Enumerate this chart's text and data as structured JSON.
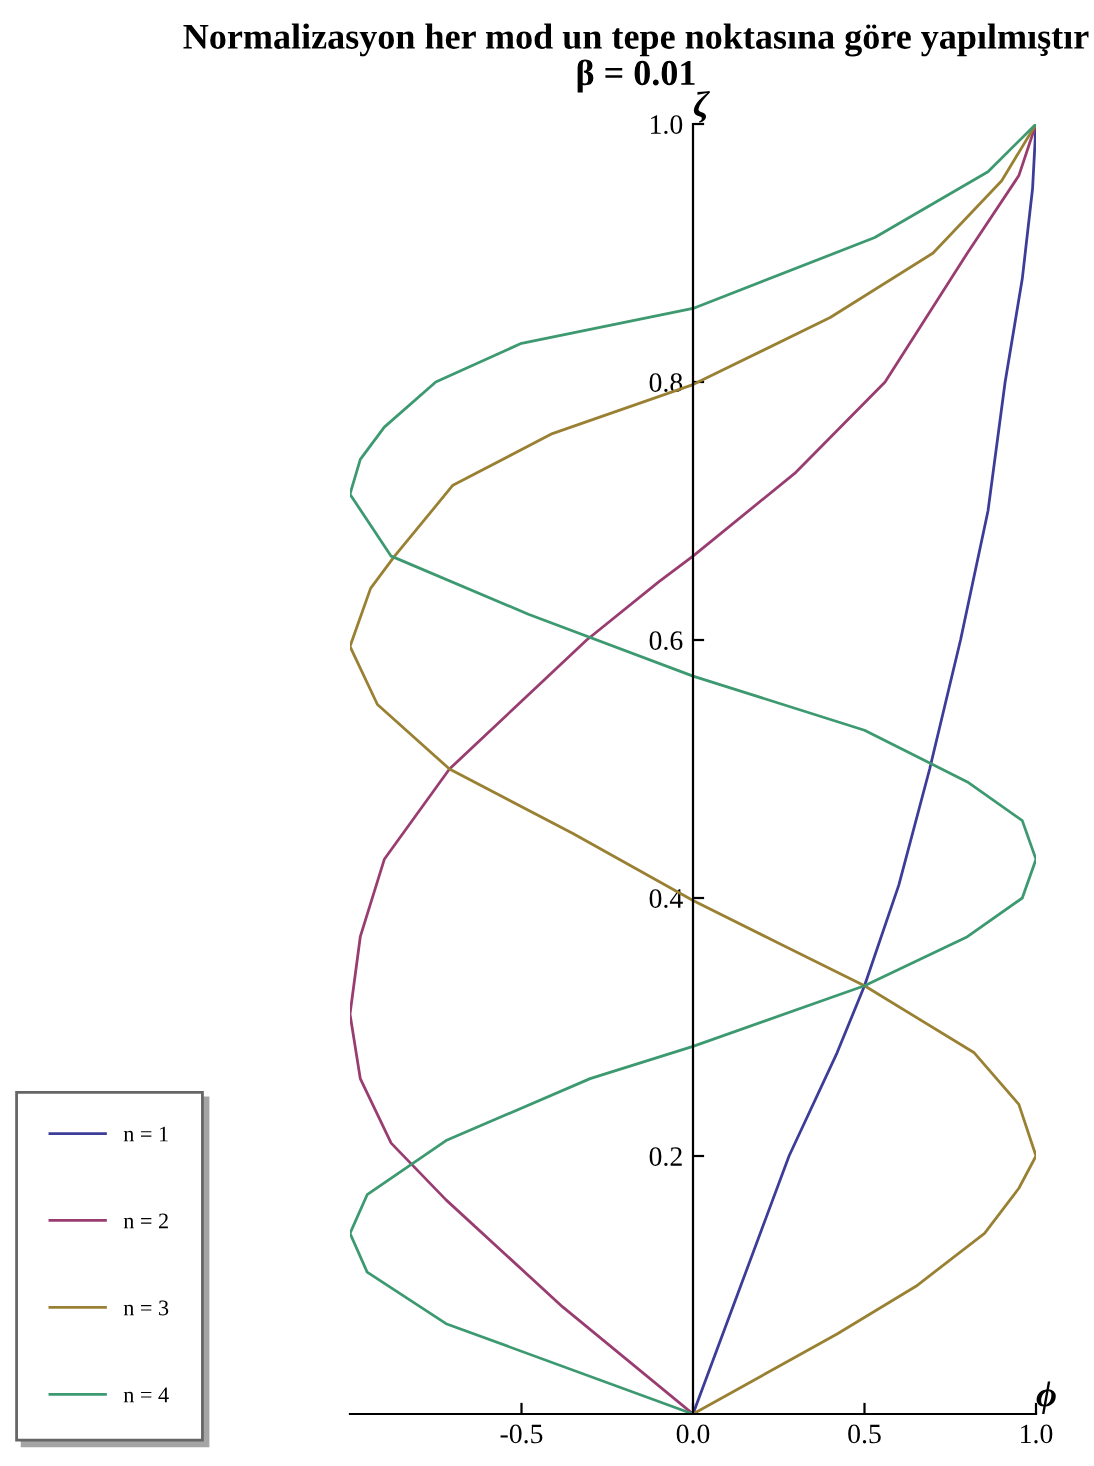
{
  "chart_data": {
    "type": "line",
    "title": "Normalizasyon her mod un tepe noktasına göre yapılmıştır",
    "subtitle": "β = 0.01",
    "xlabel": "ϕ",
    "ylabel": "ζ",
    "xlim": [
      -1.0,
      1.0
    ],
    "ylim": [
      0,
      1.0
    ],
    "xticks": [
      -0.5,
      {
        "value": 0,
        "label": "0.0"
      },
      0.5,
      {
        "value": 1,
        "label": "1.0"
      }
    ],
    "yticks": [
      0.2,
      0.4,
      0.6,
      0.8,
      {
        "value": 1,
        "label": "1.0"
      }
    ],
    "grid": false,
    "legend": "bottom left",
    "series": [
      {
        "name": "n = 1",
        "color": "#3d3d99",
        "x": [
          0,
          0.14,
          0.28,
          0.42,
          0.5,
          0.6,
          0.69,
          0.78,
          0.86,
          0.91,
          0.96,
          0.99,
          1.0
        ],
        "values": [
          0,
          0.1,
          0.2,
          0.28,
          0.332,
          0.41,
          0.5,
          0.6,
          0.7,
          0.8,
          0.88,
          0.95,
          1.0
        ]
      },
      {
        "name": "n = 2",
        "color": "#993d71",
        "x": [
          0,
          -0.38,
          -0.72,
          -0.88,
          -0.97,
          -1.0,
          -0.97,
          -0.9,
          -0.71,
          -0.51,
          -0.31,
          -0.1,
          0,
          0.3,
          0.56,
          0.8,
          0.95,
          1.0
        ],
        "values": [
          0,
          0.083,
          0.166,
          0.21,
          0.26,
          0.31,
          0.37,
          0.43,
          0.5,
          0.55,
          0.6,
          0.645,
          0.665,
          0.73,
          0.8,
          0.9,
          0.96,
          1.0
        ]
      },
      {
        "name": "n = 3",
        "color": "#998033",
        "x": [
          0,
          0.42,
          0.65,
          0.85,
          0.95,
          1.0,
          0.95,
          0.82,
          0.5,
          0.25,
          0,
          -0.35,
          -0.71,
          -0.92,
          -1.0,
          -0.94,
          -0.87,
          -0.7,
          -0.41,
          0,
          0.4,
          0.7,
          0.9,
          1.0
        ],
        "values": [
          0,
          0.062,
          0.099,
          0.14,
          0.175,
          0.2,
          0.24,
          0.28,
          0.332,
          0.365,
          0.398,
          0.45,
          0.5,
          0.55,
          0.595,
          0.64,
          0.665,
          0.72,
          0.76,
          0.798,
          0.85,
          0.9,
          0.956,
          1.0
        ]
      },
      {
        "name": "n = 4",
        "color": "#3d9970",
        "x": [
          0,
          -0.72,
          -0.95,
          -1.0,
          -0.95,
          -0.72,
          -0.3,
          0,
          0.5,
          0.8,
          0.96,
          1.0,
          0.96,
          0.8,
          0.5,
          0,
          -0.48,
          -0.88,
          -1.0,
          -0.97,
          -0.9,
          -0.75,
          -0.5,
          0,
          0.53,
          0.86,
          1.0
        ],
        "values": [
          0,
          0.07,
          0.11,
          0.14,
          0.17,
          0.212,
          0.26,
          0.285,
          0.332,
          0.37,
          0.4,
          0.43,
          0.46,
          0.49,
          0.53,
          0.572,
          0.62,
          0.665,
          0.713,
          0.74,
          0.765,
          0.8,
          0.83,
          0.857,
          0.912,
          0.963,
          1.0
        ]
      }
    ]
  }
}
